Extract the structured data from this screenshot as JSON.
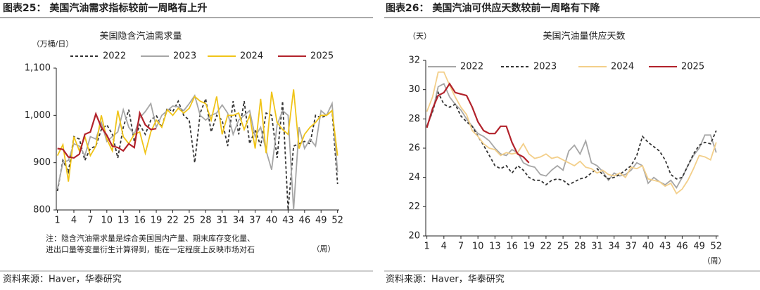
{
  "headers": [
    "图表25：  美国汽油需求指标较前一周略有上升",
    "图表26：  美国汽油可供应天数较前一周略有下降"
  ],
  "sources": [
    "资料来源：Haver，华泰研究",
    "资料来源：Haver，华泰研究"
  ],
  "chart_data": [
    {
      "type": "line",
      "title": "美国隐含汽油需求量",
      "y_label": "（万桶/日）",
      "x_label": "（周）",
      "note": [
        "注：隐含汽油需求量是综合美国国内产量、期末库存变化量、",
        "进出口量等变量衍生计算得到，能在一定程度上反映市场对石"
      ],
      "x": [
        1,
        2,
        3,
        4,
        5,
        6,
        7,
        8,
        9,
        10,
        11,
        12,
        13,
        14,
        15,
        16,
        17,
        18,
        19,
        20,
        21,
        22,
        23,
        24,
        25,
        26,
        27,
        28,
        29,
        30,
        31,
        32,
        33,
        34,
        35,
        36,
        37,
        38,
        39,
        40,
        41,
        42,
        43,
        44,
        45,
        46,
        47,
        48,
        49,
        50,
        51,
        52
      ],
      "xlim": [
        0.8,
        52.3
      ],
      "xticks": [
        1,
        4,
        7,
        10,
        13,
        16,
        19,
        22,
        25,
        28,
        31,
        34,
        37,
        40,
        43,
        46,
        49,
        52
      ],
      "ylim": [
        800,
        1100
      ],
      "yticks": [
        800,
        900,
        {
          "value": 1000,
          "label": "1,000"
        },
        {
          "value": 1100,
          "label": "1,100"
        }
      ],
      "grid": false,
      "legend": "top",
      "series": [
        {
          "name": "2022",
          "color": "#333333",
          "style": "dashed",
          "values": [
            840,
            905,
            880,
            955,
            950,
            905,
            930,
            935,
            970,
            980,
            960,
            910,
            975,
            1012,
            945,
            980,
            960,
            990,
            1000,
            975,
            1015,
            1008,
            1030,
            1000,
            990,
            900,
            1005,
            1035,
            965,
            1000,
            990,
            935,
            1030,
            960,
            1030,
            940,
            970,
            935,
            1005,
            1000,
            910,
            1030,
            800,
            935,
            940,
            945,
            940,
            1000,
            995,
            1000,
            1010,
            855
          ]
        },
        {
          "name": "2023",
          "color": "#a6a6a6",
          "style": "solid",
          "values": [
            845,
            900,
            905,
            940,
            935,
            915,
            955,
            950,
            985,
            945,
            955,
            965,
            1012,
            975,
            960,
            995,
            1008,
            1025,
            975,
            1000,
            1010,
            1020,
            1018,
            1010,
            1025,
            1042,
            1000,
            990,
            1000,
            1005,
            1022,
            1005,
            960,
            990,
            1000,
            1010,
            955,
            975,
            925,
            885,
            980,
            1010,
            1000,
            800,
            975,
            930,
            950,
            935,
            1010,
            1000,
            1025,
            880
          ]
        },
        {
          "name": "2024",
          "color": "#f0c419",
          "style": "solid",
          "values": [
            915,
            938,
            860,
            955,
            925,
            955,
            915,
            935,
            1000,
            950,
            925,
            1010,
            955,
            940,
            960,
            965,
            920,
            965,
            990,
            975,
            1012,
            1000,
            1015,
            1005,
            1015,
            1040,
            1030,
            1025,
            990,
            1040,
            960,
            1000,
            1000,
            1005,
            970,
            1000,
            930,
            1035,
            920,
            1050,
            985,
            970,
            960,
            1055,
            930,
            960,
            975,
            985,
            1000,
            1000,
            1010,
            915
          ]
        },
        {
          "name": "2025",
          "color": "#b2222b",
          "style": "solid",
          "values": [
            930,
            928,
            912,
            910,
            918,
            960,
            965,
            1003,
            975,
            958,
            935,
            932,
            925,
            940,
            932,
            1005,
            980,
            970,
            972,
            null,
            null,
            null,
            null,
            null,
            null,
            null,
            null,
            null,
            null,
            null,
            null,
            null,
            null,
            null,
            null,
            null,
            null,
            null,
            null,
            null,
            null,
            null,
            null,
            null,
            null,
            null,
            null,
            null,
            null,
            null,
            null,
            null
          ]
        }
      ]
    },
    {
      "type": "line",
      "title": "美国汽油量供应天数",
      "y_label": "（天）",
      "x_label": "（周）",
      "x": [
        1,
        2,
        3,
        4,
        5,
        6,
        7,
        8,
        9,
        10,
        11,
        12,
        13,
        14,
        15,
        16,
        17,
        18,
        19,
        20,
        21,
        22,
        23,
        24,
        25,
        26,
        27,
        28,
        29,
        30,
        31,
        32,
        33,
        34,
        35,
        36,
        37,
        38,
        39,
        40,
        41,
        42,
        43,
        44,
        45,
        46,
        47,
        48,
        49,
        50,
        51,
        52
      ],
      "xlim": [
        0.8,
        52.4
      ],
      "xticks": [
        1,
        4,
        7,
        10,
        13,
        16,
        19,
        22,
        25,
        28,
        31,
        34,
        37,
        40,
        43,
        46,
        49,
        52
      ],
      "ylim": [
        20,
        32
      ],
      "yticks": [
        20,
        22,
        24,
        26,
        28,
        30,
        32
      ],
      "grid": false,
      "legend": "top",
      "series": [
        {
          "name": "2022",
          "color": "#a6a6a6",
          "style": "solid",
          "values": [
            27.5,
            28.5,
            30.2,
            30.4,
            29.5,
            29.0,
            28.6,
            28.0,
            27.5,
            27.0,
            26.8,
            26.5,
            26.0,
            25.6,
            25.5,
            25.9,
            25.7,
            25.0,
            24.8,
            24.7,
            24.2,
            24.1,
            24.5,
            24.8,
            24.5,
            25.8,
            26.2,
            25.6,
            26.5,
            25.0,
            24.8,
            24.4,
            23.8,
            24.3,
            24.1,
            24.2,
            24.5,
            25.0,
            24.8,
            23.6,
            24.0,
            23.7,
            23.5,
            23.8,
            23.3,
            24.0,
            24.8,
            25.5,
            26.0,
            26.9,
            26.9,
            25.7
          ]
        },
        {
          "name": "2023",
          "color": "#333333",
          "style": "dashed",
          "values": [
            27.5,
            28.5,
            29.8,
            29.0,
            28.8,
            29.0,
            28.2,
            27.8,
            27.5,
            26.8,
            26.2,
            25.5,
            24.8,
            24.6,
            24.8,
            24.3,
            24.8,
            24.5,
            24.0,
            23.8,
            23.8,
            23.5,
            23.8,
            23.9,
            23.8,
            23.5,
            23.7,
            23.9,
            24.0,
            24.3,
            24.6,
            24.2,
            23.9,
            24.0,
            24.2,
            24.5,
            24.8,
            25.5,
            26.8,
            26.4,
            26.1,
            25.8,
            25.2,
            24.2,
            23.9,
            24.0,
            24.8,
            25.6,
            26.2,
            26.4,
            26.3,
            27.2
          ]
        },
        {
          "name": "2024",
          "color": "#f3cf8a",
          "style": "solid",
          "values": [
            28.5,
            29.5,
            31.2,
            31.2,
            30.3,
            29.5,
            28.8,
            28.3,
            27.2,
            26.8,
            26.3,
            26.0,
            25.9,
            25.5,
            25.7,
            25.6,
            25.7,
            26.3,
            25.6,
            25.3,
            25.4,
            25.6,
            25.3,
            25.4,
            25.2,
            25.0,
            24.8,
            25.1,
            24.7,
            24.6,
            24.3,
            24.5,
            24.2,
            24.1,
            24.3,
            24.0,
            24.7,
            24.6,
            24.8,
            23.9,
            23.8,
            23.7,
            23.4,
            23.6,
            22.9,
            23.2,
            23.8,
            24.6,
            25.5,
            25.4,
            25.2,
            26.4
          ]
        },
        {
          "name": "2025",
          "color": "#b2222b",
          "style": "solid",
          "values": [
            27.4,
            28.7,
            29.6,
            29.8,
            30.4,
            29.8,
            29.7,
            29.6,
            28.8,
            27.8,
            27.2,
            27.0,
            27.0,
            27.5,
            27.5,
            26.4,
            25.6,
            25.4,
            25.0,
            null,
            null,
            null,
            null,
            null,
            null,
            null,
            null,
            null,
            null,
            null,
            null,
            null,
            null,
            null,
            null,
            null,
            null,
            null,
            null,
            null,
            null,
            null,
            null,
            null,
            null,
            null,
            null,
            null,
            null,
            null,
            null,
            null
          ]
        }
      ]
    }
  ]
}
